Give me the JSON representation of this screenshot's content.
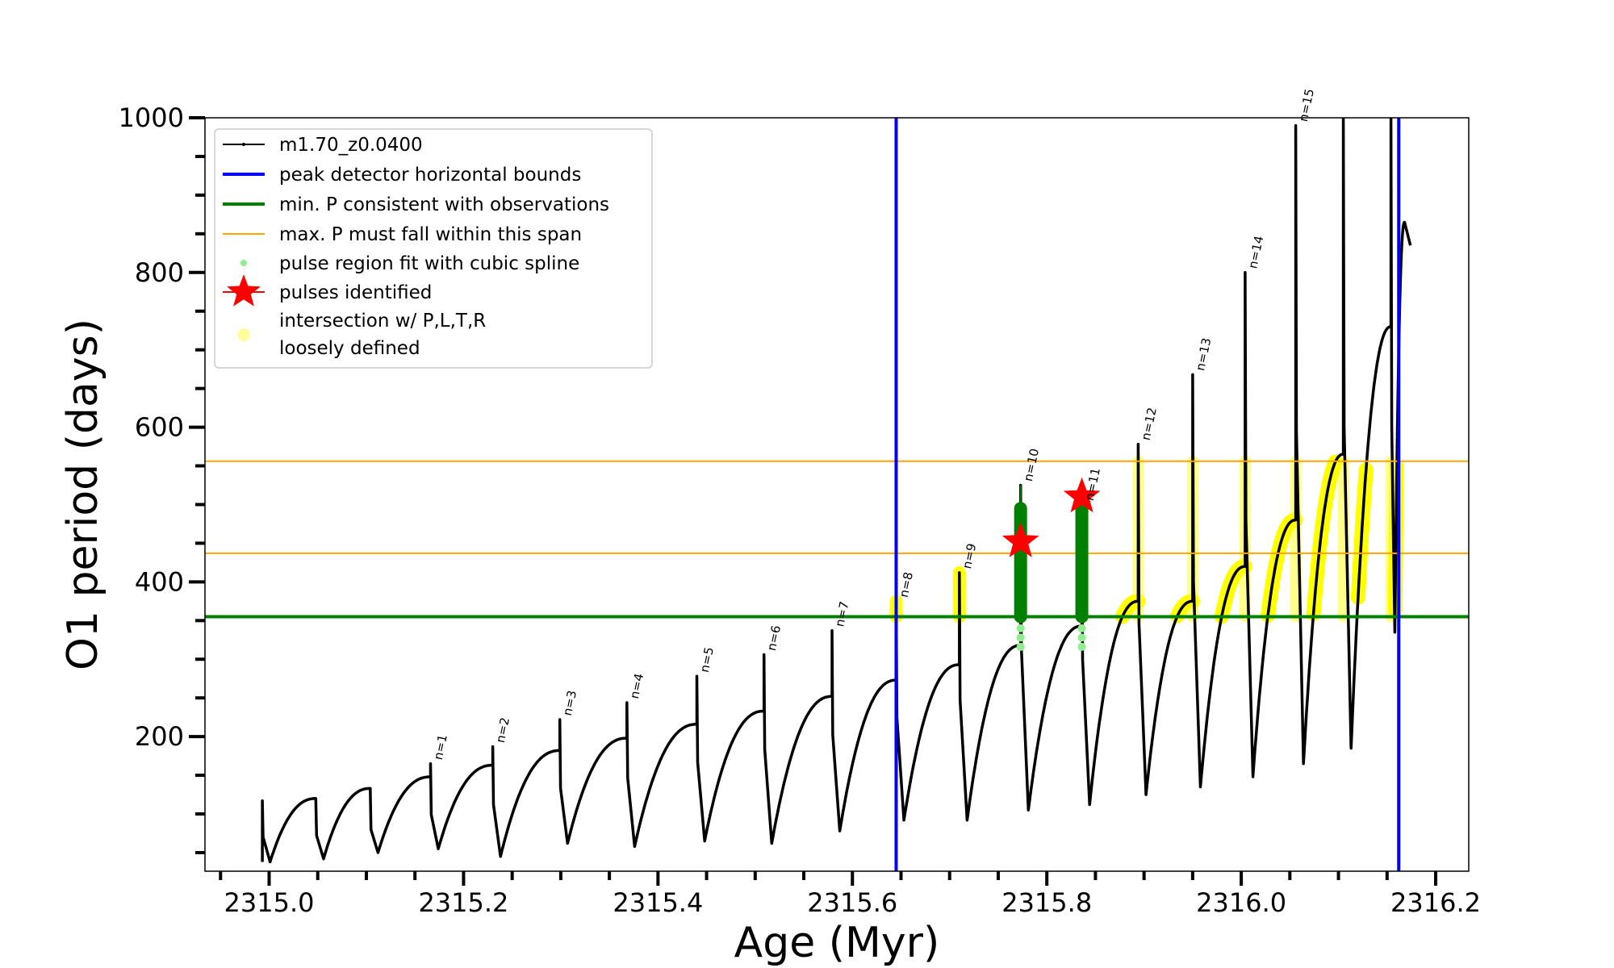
{
  "chart_data": {
    "type": "line",
    "xlabel": "Age (Myr)",
    "ylabel": "O1 period (days)",
    "xlim": [
      2314.934,
      2316.234
    ],
    "ylim": [
      26,
      1000
    ],
    "xticks": [
      "2315.0",
      "2315.2",
      "2315.4",
      "2315.6",
      "2315.8",
      "2316.0",
      "2316.2"
    ],
    "yticks": [
      "200",
      "400",
      "600",
      "800",
      "1000"
    ],
    "grid": false,
    "legend_position": "top-left",
    "legend": [
      {
        "label": "m1.70_z0.0400",
        "kind": "line-marker",
        "color": "#000000"
      },
      {
        "label": "peak detector horizontal bounds",
        "kind": "line",
        "color": "#0000ff"
      },
      {
        "label": "min. P consistent with observations",
        "kind": "line",
        "color": "#008000"
      },
      {
        "label": "max. P must fall within this span",
        "kind": "thin-line",
        "color": "#ffa500"
      },
      {
        "label": "pulse region fit with cubic spline",
        "kind": "dot",
        "color": "#90ee90"
      },
      {
        "label": "pulses identified",
        "kind": "star",
        "color": "#ff0000"
      },
      {
        "label": "intersection w/ P,L,T,R",
        "label2": "loosely defined",
        "kind": "circle",
        "color": "#ffffa0"
      }
    ],
    "series": {
      "name": "m1.70_z0.0400",
      "pulses": [
        {
          "age": 2314.993,
          "spike": 117,
          "min": 38,
          "peak": 120,
          "label": ""
        },
        {
          "age": 2315.048,
          "spike": 120,
          "min": 42,
          "peak": 133,
          "label": ""
        },
        {
          "age": 2315.104,
          "spike": 133,
          "min": 50,
          "peak": 148,
          "label": ""
        },
        {
          "age": 2315.166,
          "spike": 165,
          "min": 55,
          "peak": 163,
          "label": "n=1"
        },
        {
          "age": 2315.23,
          "spike": 187,
          "min": 45,
          "peak": 182,
          "label": "n=2"
        },
        {
          "age": 2315.299,
          "spike": 222,
          "min": 62,
          "peak": 198,
          "label": "n=3"
        },
        {
          "age": 2315.368,
          "spike": 244,
          "min": 58,
          "peak": 216,
          "label": "n=4"
        },
        {
          "age": 2315.44,
          "spike": 278,
          "min": 65,
          "peak": 233,
          "label": "n=5"
        },
        {
          "age": 2315.509,
          "spike": 306,
          "min": 62,
          "peak": 252,
          "label": "n=6"
        },
        {
          "age": 2315.579,
          "spike": 337,
          "min": 78,
          "peak": 273,
          "label": "n=7"
        },
        {
          "age": 2315.645,
          "spike": 375,
          "min": 92,
          "peak": 293,
          "label": "n=8"
        },
        {
          "age": 2315.71,
          "spike": 412,
          "min": 92,
          "peak": 318,
          "label": "n=9"
        },
        {
          "age": 2315.773,
          "spike": 525,
          "min": 105,
          "peak": 343,
          "label": "n=10"
        },
        {
          "age": 2315.836,
          "spike": 500,
          "min": 112,
          "peak": 375,
          "label": "n=11"
        },
        {
          "age": 2315.894,
          "spike": 578,
          "min": 125,
          "peak": 375,
          "label": "n=12"
        },
        {
          "age": 2315.95,
          "spike": 668,
          "min": 135,
          "peak": 420,
          "label": "n=13"
        },
        {
          "age": 2316.004,
          "spike": 800,
          "min": 148,
          "peak": 480,
          "label": "n=14"
        },
        {
          "age": 2316.056,
          "spike": 990,
          "min": 165,
          "peak": 565,
          "label": "n=15"
        },
        {
          "age": 2316.105,
          "spike": 1000,
          "min": 185,
          "peak": 730,
          "label": ""
        },
        {
          "age": 2316.154,
          "spike": 1000,
          "min": 335,
          "peak": 865,
          "label": ""
        }
      ],
      "end_age": 2316.174,
      "end_value": 835
    },
    "peak_detector_bounds": [
      2315.645,
      2316.162
    ],
    "min_period": 355,
    "max_period_span": [
      437,
      556
    ],
    "pulses_identified": [
      {
        "age": 2315.773,
        "period": 452
      },
      {
        "age": 2315.836,
        "period": 510
      }
    ],
    "spline_regions": [
      {
        "age": 2315.773,
        "from": 355,
        "to": 495
      },
      {
        "age": 2315.836,
        "from": 355,
        "to": 495
      }
    ]
  }
}
